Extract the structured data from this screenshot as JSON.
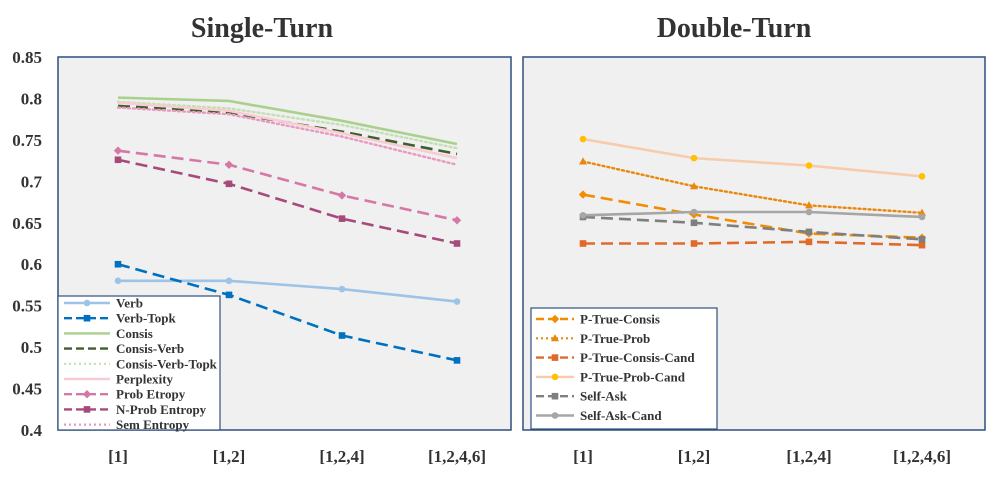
{
  "chart_data": [
    {
      "type": "line",
      "title": "Single-Turn",
      "categories": [
        "[1]",
        "[1,2]",
        "[1,2,4]",
        "[1,2,4,6]"
      ],
      "ylim": [
        0.4,
        0.85
      ],
      "yticks": [
        "0.4",
        "0.45",
        "0.5",
        "0.55",
        "0.6",
        "0.65",
        "0.7",
        "0.75",
        "0.8",
        "0.85"
      ],
      "legend_position": "bottom-left",
      "series": [
        {
          "name": "Verb",
          "values": [
            0.58,
            0.58,
            0.57,
            0.555
          ],
          "color": "#9dc3e6",
          "dash": "solid",
          "marker": "circle"
        },
        {
          "name": "Verb-Topk",
          "values": [
            0.6,
            0.563,
            0.514,
            0.484
          ],
          "color": "#0070c0",
          "dash": "longdash",
          "marker": "square"
        },
        {
          "name": "Consis",
          "values": [
            0.801,
            0.797,
            0.773,
            0.745
          ],
          "color": "#a9d18e",
          "dash": "solid",
          "marker": "none"
        },
        {
          "name": "Consis-Verb",
          "values": [
            0.791,
            0.783,
            0.76,
            0.733
          ],
          "color": "#3f5f2a",
          "dash": "longdash",
          "marker": "none"
        },
        {
          "name": "Consis-Verb-Topk",
          "values": [
            0.796,
            0.788,
            0.768,
            0.74
          ],
          "color": "#c5e0b4",
          "dash": "dot",
          "marker": "none"
        },
        {
          "name": "Perplexity",
          "values": [
            0.795,
            0.785,
            0.758,
            0.728
          ],
          "color": "#f8cbd5",
          "dash": "solid",
          "marker": "none"
        },
        {
          "name": "Prob Etropy",
          "values": [
            0.737,
            0.72,
            0.683,
            0.653
          ],
          "color": "#d678a6",
          "dash": "longdash",
          "marker": "diamond"
        },
        {
          "name": "N-Prob Entropy",
          "values": [
            0.726,
            0.697,
            0.655,
            0.625
          ],
          "color": "#a64a7b",
          "dash": "longdash",
          "marker": "square"
        },
        {
          "name": "Sem Entropy",
          "values": [
            0.789,
            0.781,
            0.754,
            0.72
          ],
          "color": "#e89ac0",
          "dash": "dot",
          "marker": "none"
        }
      ]
    },
    {
      "type": "line",
      "title": "Double-Turn",
      "categories": [
        "[1]",
        "[1,2]",
        "[1,2,4]",
        "[1,2,4,6]"
      ],
      "ylim": [
        0.4,
        0.85
      ],
      "legend_position": "bottom-left",
      "series": [
        {
          "name": "P-True-Consis",
          "values": [
            0.684,
            0.66,
            0.637,
            0.632
          ],
          "color": "#f28c00",
          "dash": "longdash",
          "marker": "diamond"
        },
        {
          "name": "P-True-Prob",
          "values": [
            0.724,
            0.694,
            0.671,
            0.662
          ],
          "color": "#e8890e",
          "dash": "dot",
          "marker": "triangle"
        },
        {
          "name": "P-True-Consis-Cand",
          "values": [
            0.625,
            0.625,
            0.627,
            0.623
          ],
          "color": "#e06a2a",
          "dash": "longdash",
          "marker": "square"
        },
        {
          "name": "P-True-Prob-Cand",
          "values": [
            0.751,
            0.728,
            0.719,
            0.706
          ],
          "color": "#f8cbad",
          "dash": "solid",
          "marker": "circle-gold"
        },
        {
          "name": "Self-Ask",
          "values": [
            0.657,
            0.65,
            0.639,
            0.63
          ],
          "color": "#7f7f7f",
          "dash": "longdash",
          "marker": "square"
        },
        {
          "name": "Self-Ask-Cand",
          "values": [
            0.659,
            0.663,
            0.663,
            0.657
          ],
          "color": "#a6a6a6",
          "dash": "solid",
          "marker": "circle"
        }
      ]
    }
  ]
}
